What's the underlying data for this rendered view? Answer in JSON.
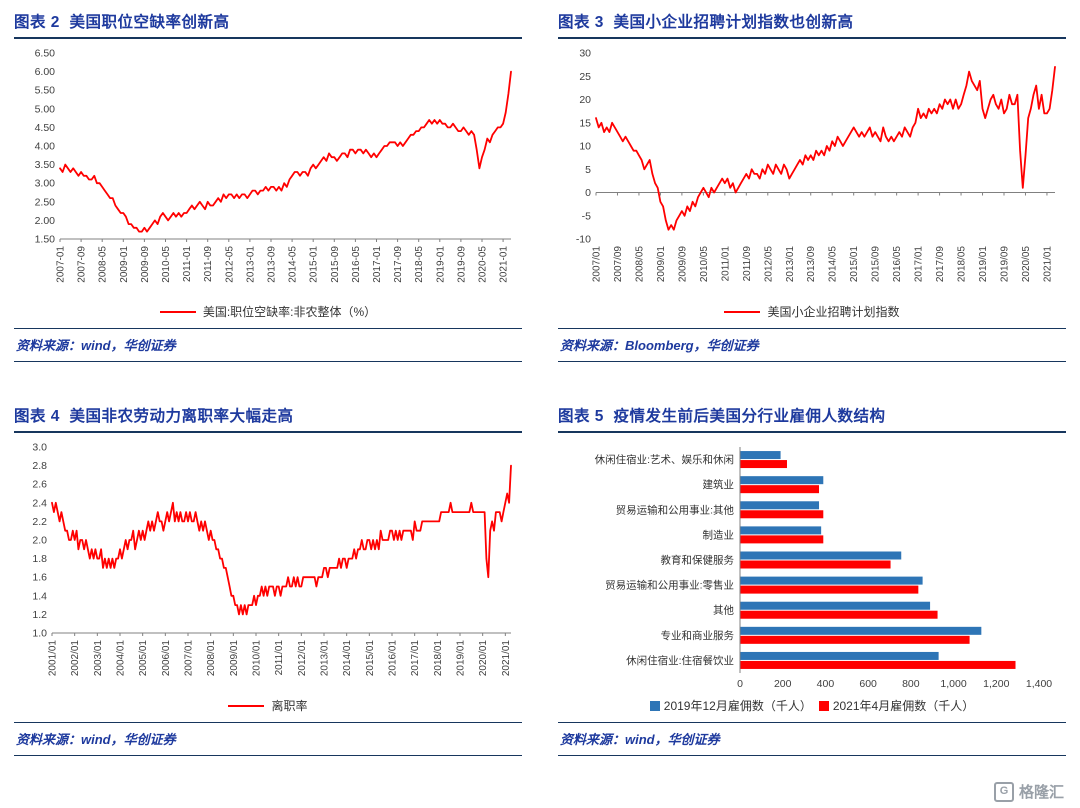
{
  "colors": {
    "title": "#1E3A9E",
    "rule": "#17365D",
    "line": "#FF0000",
    "bar_blue": "#2E75B6",
    "bar_red": "#FF0000",
    "axis": "#808080",
    "tick_text": "#404040",
    "source_text": "#1E3A9E",
    "watermark": "#99A0A8"
  },
  "panels": [
    {
      "title": "图表 2  美国职位空缺率创新高",
      "legend": "美国:职位空缺率:非农整体（%）",
      "source": "资料来源：wind，华创证券"
    },
    {
      "title": "图表 3  美国小企业招聘计划指数也创新高",
      "legend": "美国小企业招聘计划指数",
      "source": "资料来源：Bloomberg，华创证券"
    },
    {
      "title": "图表 4  美国非农劳动力离职率大幅走高",
      "legend": "离职率",
      "source": "资料来源：wind，华创证券"
    },
    {
      "title": "图表 5  疫情发生前后美国分行业雇佣人数结构",
      "source": "资料来源：wind，华创证券"
    }
  ],
  "watermark": {
    "logo_glyph": "G",
    "text": "格隆汇"
  },
  "chart_data": [
    {
      "type": "line",
      "title": "美国职位空缺率创新高",
      "series_name": "美国:职位空缺率:非农整体（%）",
      "start": "2007-01",
      "freq": "monthly",
      "ylim": [
        1.5,
        6.5
      ],
      "ytick_step": 0.5,
      "ytick_decimals": 2,
      "axis_y": 1.5,
      "margin_left": 44,
      "grid": false,
      "legend_position": "bottom",
      "xtick_every": 8,
      "xtick_labels": [
        "2007-01",
        "2007-09",
        "2008-05",
        "2009-01",
        "2009-09",
        "2010-05",
        "2011-01",
        "2011-09",
        "2012-05",
        "2013-01",
        "2013-09",
        "2014-05",
        "2015-01",
        "2015-09",
        "2016-05",
        "2017-01",
        "2017-09",
        "2018-05",
        "2019-01",
        "2019-09",
        "2020-05",
        "2021-01"
      ],
      "values": [
        3.4,
        3.3,
        3.5,
        3.4,
        3.3,
        3.4,
        3.3,
        3.2,
        3.3,
        3.2,
        3.2,
        3.1,
        3.1,
        3.2,
        3.0,
        3.0,
        2.9,
        2.8,
        2.7,
        2.6,
        2.6,
        2.4,
        2.3,
        2.2,
        2.2,
        2.1,
        1.9,
        1.9,
        1.8,
        1.8,
        1.7,
        1.7,
        1.8,
        1.7,
        1.8,
        1.9,
        2.0,
        1.9,
        2.1,
        2.2,
        2.1,
        2.0,
        2.1,
        2.2,
        2.1,
        2.2,
        2.1,
        2.2,
        2.2,
        2.3,
        2.4,
        2.3,
        2.4,
        2.5,
        2.4,
        2.3,
        2.5,
        2.4,
        2.4,
        2.5,
        2.6,
        2.5,
        2.7,
        2.6,
        2.7,
        2.7,
        2.6,
        2.7,
        2.6,
        2.7,
        2.7,
        2.6,
        2.7,
        2.8,
        2.8,
        2.7,
        2.8,
        2.8,
        2.9,
        2.8,
        2.9,
        2.9,
        2.8,
        2.9,
        2.8,
        3.0,
        2.9,
        3.1,
        3.2,
        3.3,
        3.3,
        3.2,
        3.3,
        3.3,
        3.2,
        3.4,
        3.5,
        3.4,
        3.5,
        3.6,
        3.7,
        3.6,
        3.8,
        3.7,
        3.7,
        3.6,
        3.7,
        3.8,
        3.8,
        3.7,
        3.9,
        3.9,
        3.8,
        3.9,
        3.9,
        3.8,
        3.9,
        3.8,
        3.7,
        3.8,
        3.7,
        3.8,
        3.9,
        4.0,
        4.0,
        4.1,
        4.1,
        4.1,
        4.0,
        4.1,
        4.0,
        4.1,
        4.2,
        4.3,
        4.3,
        4.4,
        4.4,
        4.5,
        4.5,
        4.6,
        4.7,
        4.6,
        4.7,
        4.6,
        4.7,
        4.6,
        4.6,
        4.5,
        4.5,
        4.6,
        4.5,
        4.4,
        4.4,
        4.5,
        4.4,
        4.3,
        4.4,
        4.3,
        3.9,
        3.4,
        3.7,
        3.9,
        4.2,
        4.1,
        4.3,
        4.4,
        4.5,
        4.5,
        4.6,
        4.9,
        5.4,
        6.0
      ]
    },
    {
      "type": "line",
      "title": "美国小企业招聘计划指数也创新高",
      "series_name": "美国小企业招聘计划指数",
      "start": "2007/01",
      "freq": "monthly",
      "ylim": [
        -10,
        30
      ],
      "ytick_step": 5,
      "ytick_decimals": 0,
      "axis_y": 0,
      "margin_left": 36,
      "grid": false,
      "legend_position": "bottom",
      "xtick_every": 8,
      "xtick_labels": [
        "2007/01",
        "2007/09",
        "2008/05",
        "2009/01",
        "2009/09",
        "2010/05",
        "2011/01",
        "2011/09",
        "2012/05",
        "2013/01",
        "2013/09",
        "2014/05",
        "2015/01",
        "2015/09",
        "2016/05",
        "2017/01",
        "2017/09",
        "2018/05",
        "2019/01",
        "2019/09",
        "2020/05",
        "2021/01"
      ],
      "values": [
        16,
        14,
        15,
        13,
        14,
        13,
        15,
        14,
        13,
        12,
        11,
        12,
        11,
        10,
        9,
        9,
        8,
        7,
        5,
        6,
        7,
        4,
        2,
        1,
        -2,
        -3,
        -6,
        -8,
        -7,
        -8,
        -6,
        -5,
        -4,
        -5,
        -3,
        -4,
        -2,
        -3,
        -1,
        0,
        1,
        0,
        -1,
        1,
        0,
        1,
        2,
        3,
        2,
        3,
        1,
        2,
        0,
        1,
        2,
        3,
        4,
        3,
        5,
        4,
        4,
        3,
        5,
        4,
        6,
        5,
        4,
        6,
        5,
        4,
        6,
        5,
        3,
        4,
        5,
        6,
        7,
        6,
        8,
        7,
        8,
        7,
        9,
        8,
        9,
        8,
        10,
        9,
        11,
        10,
        12,
        11,
        10,
        11,
        12,
        13,
        14,
        13,
        12,
        13,
        12,
        13,
        14,
        12,
        13,
        12,
        11,
        14,
        12,
        11,
        12,
        11,
        12,
        13,
        12,
        14,
        13,
        12,
        14,
        15,
        18,
        16,
        17,
        16,
        18,
        17,
        18,
        17,
        19,
        18,
        20,
        19,
        20,
        18,
        20,
        18,
        19,
        21,
        23,
        26,
        24,
        23,
        22,
        24,
        18,
        16,
        18,
        20,
        21,
        19,
        18,
        20,
        17,
        18,
        21,
        19,
        19,
        21,
        9,
        1,
        8,
        16,
        18,
        21,
        23,
        18,
        21,
        17,
        17,
        18,
        22,
        27
      ]
    },
    {
      "type": "line",
      "title": "美国非农劳动力离职率大幅走高",
      "series_name": "离职率",
      "start": "2001/01",
      "freq": "monthly",
      "ylim": [
        1.0,
        3.0
      ],
      "ytick_step": 0.2,
      "ytick_decimals": 1,
      "axis_y": 1.0,
      "margin_left": 36,
      "grid": false,
      "legend_position": "bottom",
      "xtick_every": 12,
      "xtick_labels": [
        "2001/01",
        "2002/01",
        "2003/01",
        "2004/01",
        "2005/01",
        "2006/01",
        "2007/01",
        "2008/01",
        "2009/01",
        "2010/01",
        "2011/01",
        "2012/01",
        "2013/01",
        "2014/01",
        "2015/01",
        "2016/01",
        "2017/01",
        "2018/01",
        "2019/01",
        "2020/01",
        "2021/01"
      ],
      "values": [
        2.4,
        2.3,
        2.4,
        2.3,
        2.2,
        2.3,
        2.2,
        2.1,
        2.1,
        2.0,
        2.0,
        2.1,
        2.0,
        2.1,
        1.9,
        2.0,
        2.0,
        1.9,
        2.0,
        1.9,
        1.8,
        1.9,
        1.8,
        1.9,
        1.8,
        1.8,
        1.9,
        1.7,
        1.8,
        1.7,
        1.8,
        1.7,
        1.8,
        1.7,
        1.8,
        1.8,
        1.9,
        1.8,
        1.9,
        2.0,
        1.9,
        2.0,
        2.0,
        2.1,
        1.9,
        2.0,
        2.1,
        2.0,
        2.1,
        2.0,
        2.1,
        2.2,
        2.1,
        2.2,
        2.1,
        2.2,
        2.3,
        2.2,
        2.2,
        2.1,
        2.2,
        2.3,
        2.2,
        2.3,
        2.4,
        2.2,
        2.3,
        2.2,
        2.3,
        2.2,
        2.2,
        2.3,
        2.2,
        2.3,
        2.2,
        2.2,
        2.3,
        2.2,
        2.1,
        2.2,
        2.1,
        2.2,
        2.1,
        2.0,
        2.1,
        2.0,
        2.0,
        1.9,
        1.9,
        1.8,
        1.8,
        1.7,
        1.7,
        1.6,
        1.5,
        1.4,
        1.4,
        1.3,
        1.3,
        1.2,
        1.3,
        1.2,
        1.3,
        1.2,
        1.3,
        1.3,
        1.3,
        1.4,
        1.3,
        1.4,
        1.4,
        1.5,
        1.4,
        1.5,
        1.4,
        1.5,
        1.5,
        1.5,
        1.4,
        1.5,
        1.5,
        1.4,
        1.5,
        1.5,
        1.5,
        1.6,
        1.5,
        1.5,
        1.6,
        1.5,
        1.6,
        1.5,
        1.5,
        1.6,
        1.6,
        1.6,
        1.6,
        1.6,
        1.6,
        1.6,
        1.5,
        1.6,
        1.6,
        1.6,
        1.7,
        1.7,
        1.6,
        1.7,
        1.7,
        1.7,
        1.7,
        1.7,
        1.8,
        1.7,
        1.8,
        1.8,
        1.7,
        1.8,
        1.8,
        1.8,
        1.9,
        1.8,
        1.9,
        1.9,
        2.0,
        1.9,
        1.9,
        2.0,
        2.0,
        1.9,
        2.0,
        1.9,
        2.0,
        1.9,
        2.1,
        2.0,
        2.0,
        2.0,
        2.0,
        2.1,
        2.1,
        2.0,
        2.1,
        2.0,
        2.1,
        2.0,
        2.1,
        2.1,
        2.1,
        2.1,
        2.1,
        2.0,
        2.2,
        2.1,
        2.1,
        2.1,
        2.2,
        2.2,
        2.2,
        2.2,
        2.2,
        2.2,
        2.2,
        2.2,
        2.2,
        2.2,
        2.3,
        2.3,
        2.3,
        2.3,
        2.3,
        2.4,
        2.3,
        2.3,
        2.3,
        2.3,
        2.3,
        2.3,
        2.3,
        2.3,
        2.3,
        2.3,
        2.4,
        2.3,
        2.3,
        2.3,
        2.3,
        2.3,
        2.3,
        2.3,
        1.8,
        1.6,
        2.1,
        2.2,
        2.1,
        2.3,
        2.3,
        2.3,
        2.2,
        2.3,
        2.4,
        2.5,
        2.4,
        2.8
      ]
    },
    {
      "type": "bar",
      "orientation": "horizontal",
      "title": "疫情发生前后美国分行业雇佣人数结构",
      "categories": [
        "休闲住宿业:艺术、娱乐和休闲",
        "建筑业",
        "贸易运输和公用事业:其他",
        "制造业",
        "教育和保健服务",
        "贸易运输和公用事业:零售业",
        "其他",
        "专业和商业服务",
        "休闲住宿业:住宿餐饮业"
      ],
      "series": [
        {
          "name": "2019年12月雇佣数（千人）",
          "color_key": "bar_blue",
          "values": [
            190,
            390,
            370,
            380,
            755,
            855,
            890,
            1130,
            930
          ]
        },
        {
          "name": "2021年4月雇佣数（千人）",
          "color_key": "bar_red",
          "values": [
            220,
            370,
            390,
            390,
            705,
            835,
            925,
            1075,
            1290
          ]
        }
      ],
      "xlim": [
        0,
        1400
      ],
      "xtick_values": [
        0,
        200,
        400,
        600,
        800,
        1000,
        1200,
        1400
      ],
      "xtick_labels": [
        "0",
        "200",
        "400",
        "600",
        "800",
        "1,000",
        "1,200",
        "1,400"
      ],
      "grid": false,
      "legend_position": "bottom"
    }
  ]
}
